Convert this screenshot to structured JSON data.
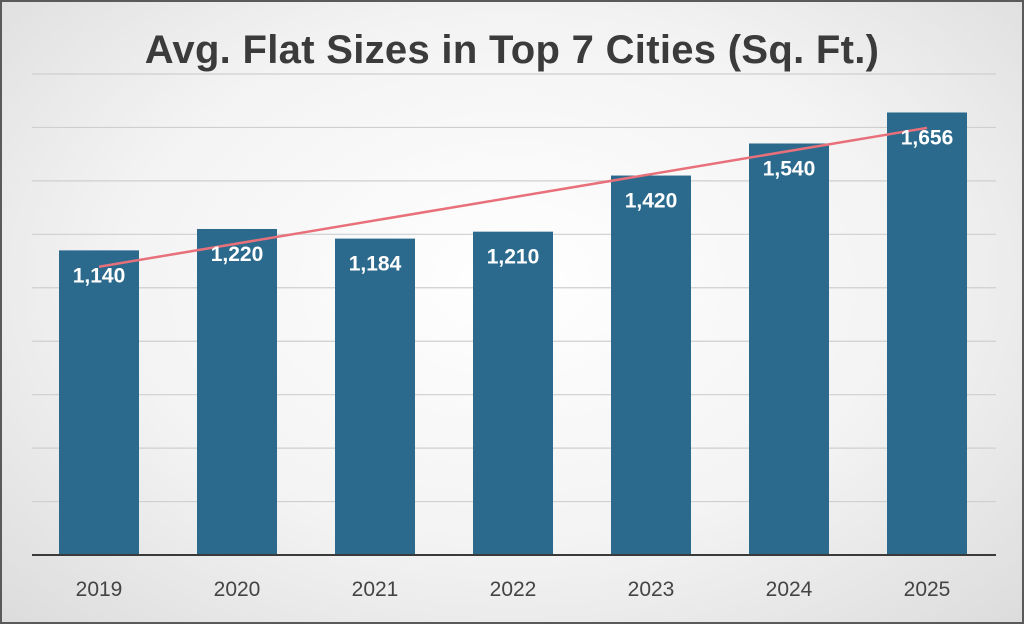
{
  "chart_data": {
    "type": "bar",
    "title": "Avg. Flat Sizes in Top 7 Cities (Sq. Ft.)",
    "categories": [
      "2019",
      "2020",
      "2021",
      "2022",
      "2023",
      "2024",
      "2025"
    ],
    "values": [
      1140,
      1220,
      1184,
      1210,
      1420,
      1540,
      1656
    ],
    "data_labels": [
      "1,140",
      "1,220",
      "1,184",
      "1,210",
      "1,420",
      "1,540",
      "1,656"
    ],
    "xlabel": "",
    "ylabel": "",
    "ylim": [
      0,
      1800
    ],
    "grid": true,
    "legend": "none",
    "trendline": {
      "type": "linear",
      "color": "#e8707a"
    },
    "colors": {
      "bar": "#2b6a8d",
      "trendline": "#e8707a",
      "axis": "#3a3a3a",
      "grid": "#cfcfcf"
    }
  }
}
